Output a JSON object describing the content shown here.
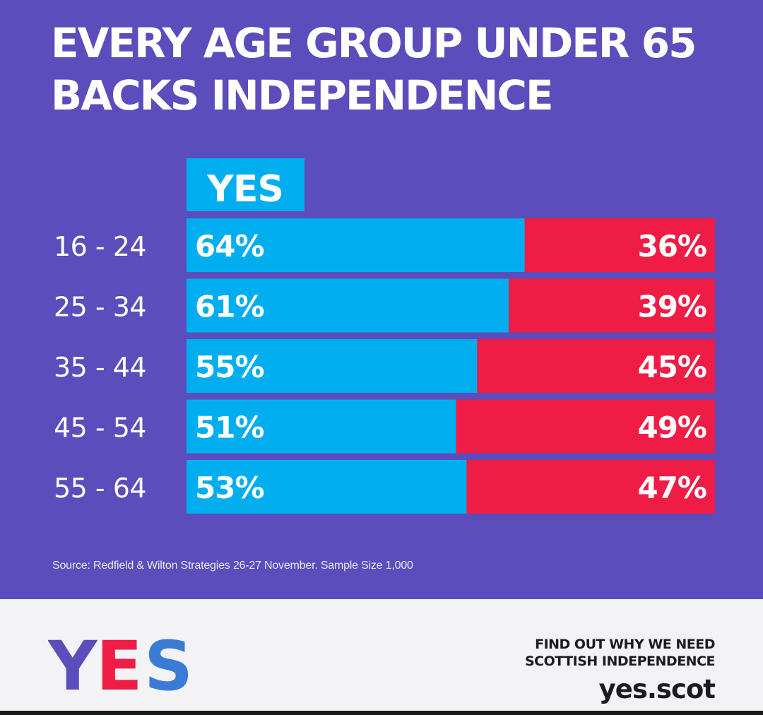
{
  "headline": "EVERY AGE GROUP UNDER 65 BACKS INDEPENDENCE",
  "chart_data": {
    "type": "bar",
    "orientation": "horizontal",
    "stacked": true,
    "categories": [
      "16 - 24",
      "25 - 34",
      "35 - 44",
      "45 - 54",
      "55 - 64"
    ],
    "series": [
      {
        "name": "YES",
        "values": [
          64,
          61,
          55,
          51,
          53
        ],
        "labels": [
          "64%",
          "61%",
          "55%",
          "51%",
          "53%"
        ],
        "color": "#00aeef"
      },
      {
        "name": "",
        "values": [
          36,
          39,
          45,
          49,
          47
        ],
        "labels": [
          "36%",
          "39%",
          "45%",
          "49%",
          "47%"
        ],
        "color": "#ef1c45"
      }
    ],
    "xlim": [
      0,
      100
    ],
    "grid": false,
    "legend": "top-left"
  },
  "source": "Source: Redfield & Wilton Strategies 26-27 November. Sample Size 1,000",
  "footer": {
    "logo": "YES",
    "cta_line1": "FIND OUT WHY WE NEED",
    "cta_line2": "SCOTTISH INDEPENDENCE",
    "url": "yes.scot"
  },
  "colors": {
    "background": "#5b4dbb",
    "yes": "#00aeef",
    "no": "#ef1c45",
    "footer": "#f3f3f6",
    "text": "#ffffff"
  }
}
